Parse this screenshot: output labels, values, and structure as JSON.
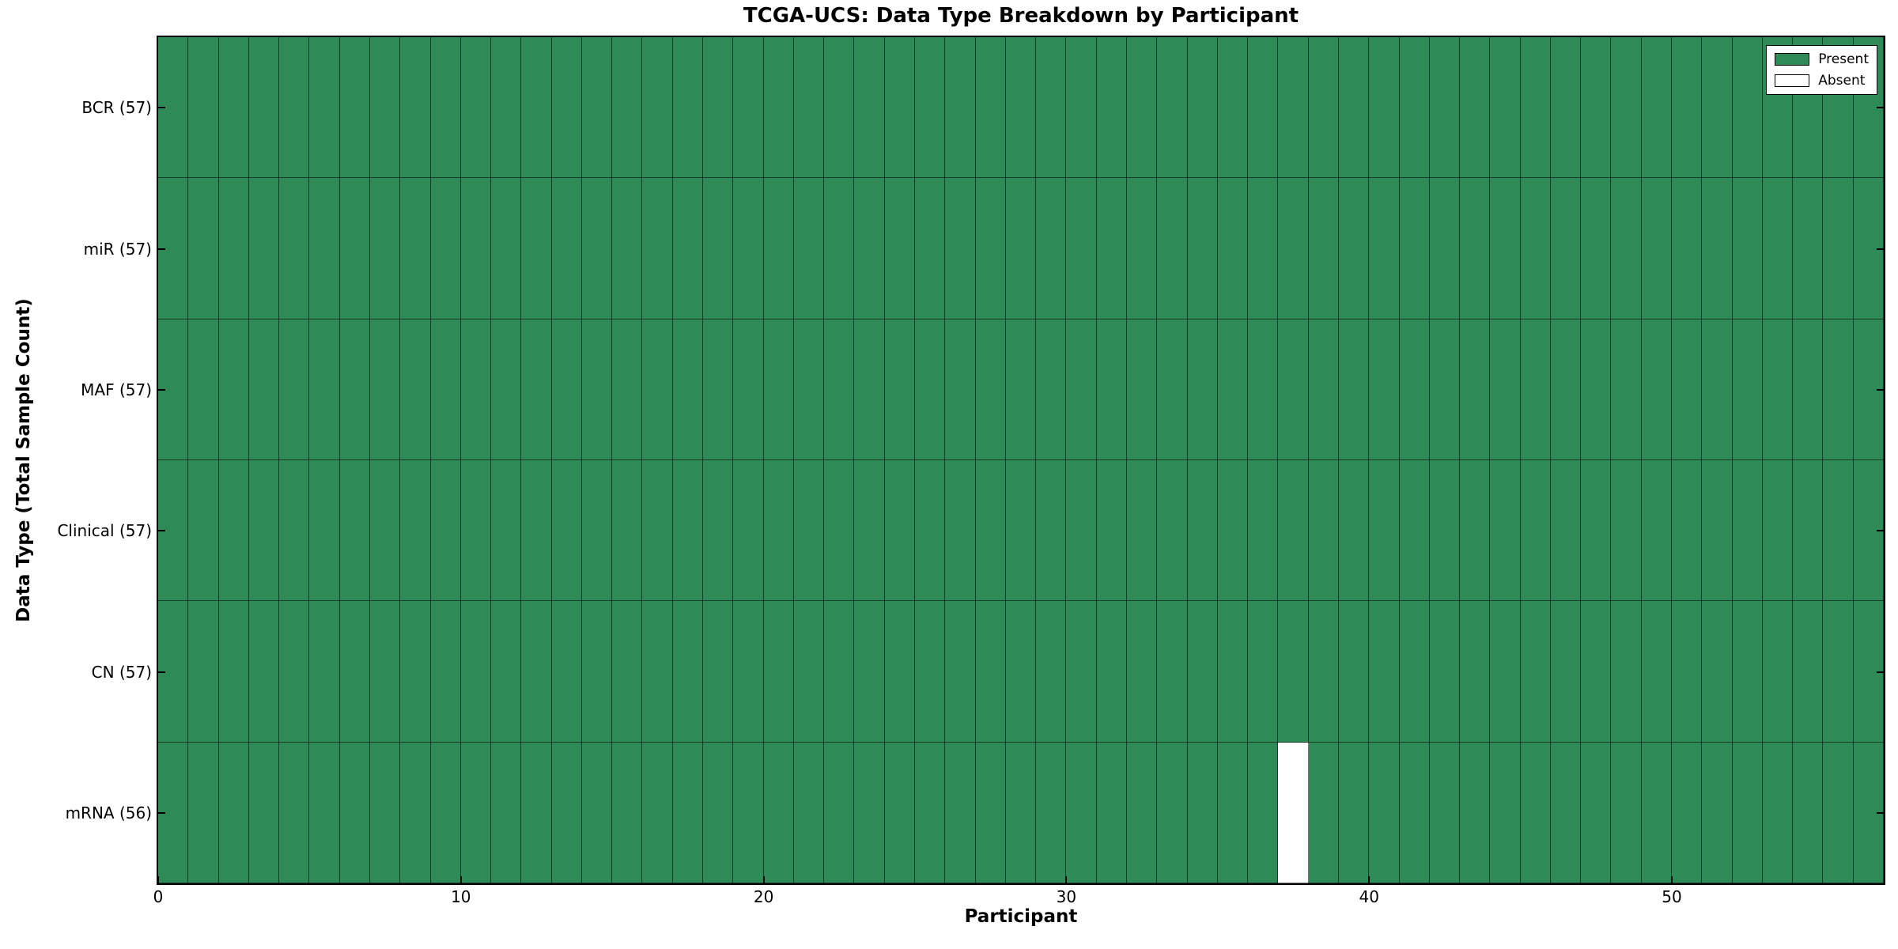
{
  "chart_data": {
    "type": "heatmap",
    "title": "TCGA-UCS: Data Type Breakdown by Participant",
    "xlabel": "Participant",
    "ylabel": "Data Type (Total Sample Count)",
    "x_ticks": [
      0,
      10,
      20,
      30,
      40,
      50
    ],
    "x_range": [
      0,
      57
    ],
    "n_participants": 57,
    "rows": [
      {
        "label": "BCR (57)",
        "data_type": "BCR",
        "sample_count": 57,
        "absent_participants": []
      },
      {
        "label": "miR (57)",
        "data_type": "miR",
        "sample_count": 57,
        "absent_participants": []
      },
      {
        "label": "MAF (57)",
        "data_type": "MAF",
        "sample_count": 57,
        "absent_participants": []
      },
      {
        "label": "Clinical (57)",
        "data_type": "Clinical",
        "sample_count": 57,
        "absent_participants": []
      },
      {
        "label": "CN (57)",
        "data_type": "CN",
        "sample_count": 57,
        "absent_participants": []
      },
      {
        "label": "mRNA (56)",
        "data_type": "mRNA",
        "sample_count": 56,
        "absent_participants": [
          37
        ]
      }
    ],
    "legend": {
      "position": "upper-right",
      "entries": [
        {
          "label": "Present",
          "color": "#2E8B57"
        },
        {
          "label": "Absent",
          "color": "#FFFFFF"
        }
      ]
    },
    "colors": {
      "present": "#2E8B57",
      "absent": "#FFFFFF",
      "cell_edge": "#000000",
      "spine": "#000000",
      "background": "#FFFFFF"
    }
  }
}
